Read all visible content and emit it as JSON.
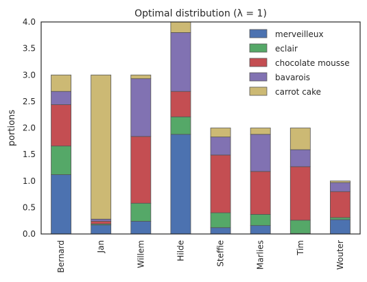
{
  "chart_data": {
    "type": "bar",
    "stacked": true,
    "title": "Optimal distribution (λ = 1)",
    "xlabel": "",
    "ylabel": "portions",
    "ylim": [
      0,
      4.0
    ],
    "yticks": [
      "0.0",
      "0.5",
      "1.0",
      "1.5",
      "2.0",
      "2.5",
      "3.0",
      "3.5",
      "4.0"
    ],
    "grid": false,
    "legend_position": "top-right",
    "categories": [
      "Bernard",
      "Jan",
      "Willem",
      "Hilde",
      "Steffie",
      "Marlies",
      "Tim",
      "Wouter"
    ],
    "series": [
      {
        "name": "merveilleux",
        "color": "#4c72b0",
        "values": [
          1.12,
          0.17,
          0.24,
          1.88,
          0.12,
          0.16,
          0.01,
          0.27
        ]
      },
      {
        "name": "eclair",
        "color": "#55a868",
        "values": [
          0.54,
          0.02,
          0.34,
          0.33,
          0.28,
          0.21,
          0.25,
          0.04
        ]
      },
      {
        "name": "chocolate mousse",
        "color": "#c44e52",
        "values": [
          0.78,
          0.05,
          1.26,
          0.48,
          1.09,
          0.81,
          1.01,
          0.49
        ]
      },
      {
        "name": "bavarois",
        "color": "#8172b2",
        "values": [
          0.25,
          0.04,
          1.09,
          1.11,
          0.34,
          0.7,
          0.32,
          0.17
        ]
      },
      {
        "name": "carrot cake",
        "color": "#ccb974",
        "values": [
          0.31,
          2.72,
          0.07,
          0.2,
          0.17,
          0.12,
          0.41,
          0.03
        ]
      }
    ]
  }
}
